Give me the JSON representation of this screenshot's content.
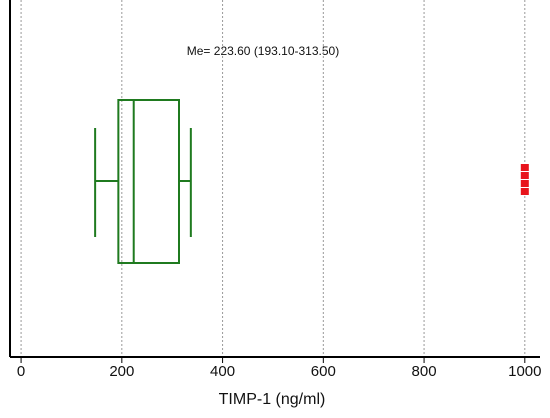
{
  "chart_data": {
    "type": "box",
    "annotation": "Me= 223.60 (193.10-313.50)",
    "xlabel": "TIMP-1 (ng/ml)",
    "xlim": [
      -22,
      1050
    ],
    "xticks": [
      0,
      200,
      400,
      600,
      800,
      1000
    ],
    "grid": true,
    "color": "#1f7a1f",
    "outlier_color": "#e8141c",
    "whisker_low": 147,
    "q1": 193.1,
    "median": 223.6,
    "q3": 313.5,
    "whisker_high": 337,
    "outliers": [
      1000,
      1000,
      1000,
      1000
    ]
  }
}
